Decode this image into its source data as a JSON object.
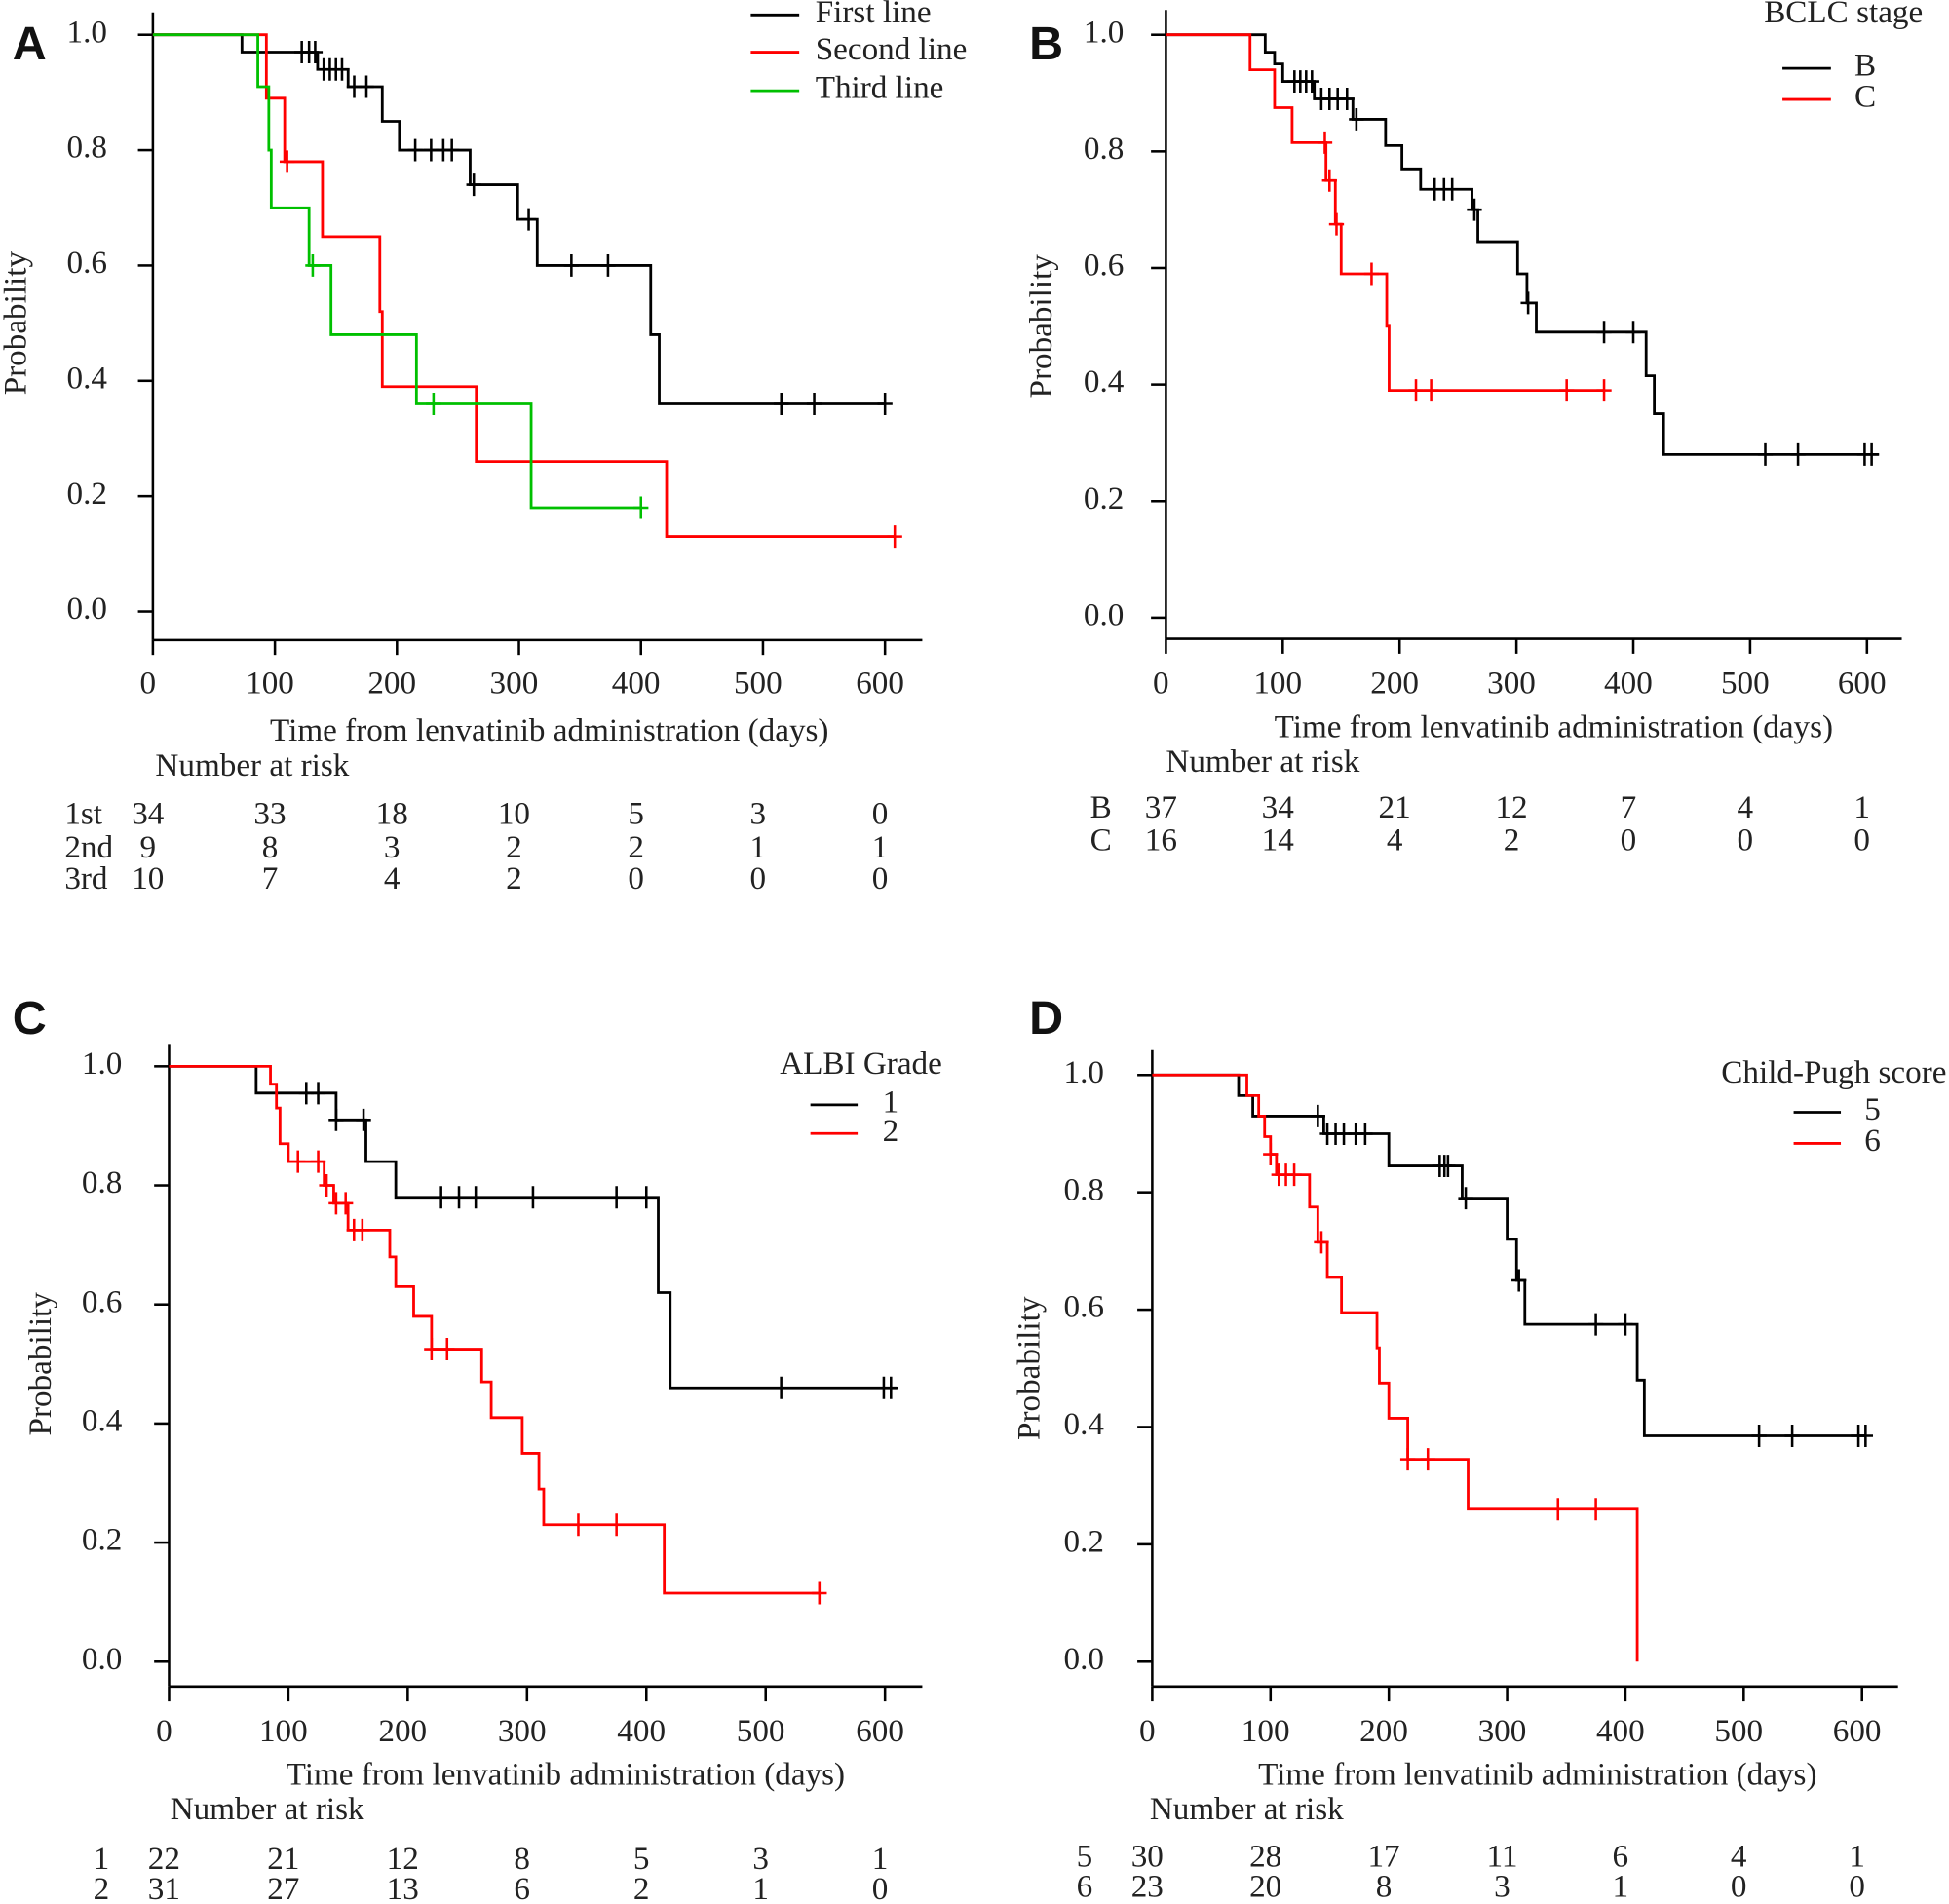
{
  "chart_data": [
    {
      "panel_label": "A",
      "type": "line",
      "subtype": "kaplan-meier",
      "xlabel": "Time from lenvatinib administration (days)",
      "ylabel": "Probability",
      "xlim": [
        0,
        600
      ],
      "ylim": [
        0,
        1
      ],
      "xticks": [
        0,
        100,
        200,
        300,
        400,
        500,
        600
      ],
      "yticks": [
        "0.0",
        "0.2",
        "0.4",
        "0.6",
        "0.8",
        "1.0"
      ],
      "grid": false,
      "legend_position": "top-right",
      "legend_title": "",
      "series": [
        {
          "name": "First line",
          "color": "#000000",
          "times": [
            0,
            73,
            135,
            160,
            188,
            202,
            260,
            299,
            315,
            408,
            415
          ],
          "survival": [
            1.0,
            0.97,
            0.94,
            0.91,
            0.85,
            0.8,
            0.74,
            0.68,
            0.6,
            0.48,
            0.36
          ],
          "end": 600,
          "censored": [
            122,
            128,
            133,
            140,
            145,
            150,
            155,
            165,
            175,
            215,
            228,
            238,
            245,
            263,
            308,
            343,
            373,
            515,
            542,
            600
          ]
        },
        {
          "name": "Second line",
          "color": "#ff0000",
          "times": [
            0,
            93,
            108,
            139,
            186,
            188,
            265,
            421
          ],
          "survival": [
            1.0,
            0.89,
            0.78,
            0.65,
            0.52,
            0.39,
            0.26,
            0.13
          ],
          "end": 608,
          "censored": [
            110,
            608
          ]
        },
        {
          "name": "Third line",
          "color": "#00c000",
          "times": [
            0,
            86,
            95,
            97,
            128,
            146,
            216,
            310
          ],
          "survival": [
            1.0,
            0.91,
            0.8,
            0.7,
            0.6,
            0.48,
            0.36,
            0.18
          ],
          "end": 400,
          "censored": [
            131,
            230,
            400
          ]
        }
      ],
      "risk_table": {
        "title": "Number at risk",
        "times": [
          0,
          100,
          200,
          300,
          400,
          500,
          600
        ],
        "rows": [
          {
            "label": "1st",
            "values": [
              "34",
              "33",
              "18",
              "10",
              "5",
              "3",
              "0"
            ]
          },
          {
            "label": "2nd",
            "values": [
              "9",
              "8",
              "3",
              "2",
              "2",
              "1",
              "1"
            ]
          },
          {
            "label": "3rd",
            "values": [
              "10",
              "7",
              "4",
              "2",
              "0",
              "0",
              "0"
            ]
          }
        ]
      }
    },
    {
      "panel_label": "B",
      "type": "line",
      "subtype": "kaplan-meier",
      "xlabel": "Time from lenvatinib administration (days)",
      "ylabel": "Probability",
      "xlim": [
        0,
        600
      ],
      "ylim": [
        0,
        1
      ],
      "xticks": [
        0,
        100,
        200,
        300,
        400,
        500,
        600
      ],
      "yticks": [
        "0.0",
        "0.2",
        "0.4",
        "0.6",
        "0.8",
        "1.0"
      ],
      "grid": false,
      "legend_position": "top-right",
      "legend_title": "BCLC stage",
      "series": [
        {
          "name": "B",
          "color": "#000000",
          "times": [
            0,
            85,
            93,
            100,
            127,
            160,
            188,
            202,
            218,
            262,
            267,
            301,
            309,
            317,
            411,
            418,
            426
          ],
          "survival": [
            1.0,
            0.97,
            0.95,
            0.92,
            0.89,
            0.855,
            0.81,
            0.77,
            0.735,
            0.7,
            0.645,
            0.59,
            0.54,
            0.49,
            0.415,
            0.35,
            0.28
          ],
          "end": 610,
          "censored": [
            110,
            115,
            120,
            125,
            133,
            140,
            147,
            155,
            163,
            230,
            238,
            245,
            264,
            310,
            375,
            400,
            513,
            541,
            598,
            604
          ]
        },
        {
          "name": "C",
          "color": "#ff0000",
          "times": [
            0,
            72,
            93,
            108,
            137,
            145,
            150,
            189,
            191
          ],
          "survival": [
            1.0,
            0.94,
            0.875,
            0.815,
            0.75,
            0.675,
            0.59,
            0.5,
            0.39
          ],
          "end": 375,
          "censored": [
            136,
            140,
            146,
            176,
            214,
            227,
            343,
            375
          ]
        }
      ],
      "risk_table": {
        "title": "Number at risk",
        "times": [
          0,
          100,
          200,
          300,
          400,
          500,
          600
        ],
        "rows": [
          {
            "label": "B",
            "values": [
              "37",
              "34",
              "21",
              "12",
              "7",
              "4",
              "1"
            ]
          },
          {
            "label": "C",
            "values": [
              "16",
              "14",
              "4",
              "2",
              "0",
              "0",
              "0"
            ]
          }
        ]
      }
    },
    {
      "panel_label": "C",
      "type": "line",
      "subtype": "kaplan-meier",
      "xlabel": "Time from lenvatinib administration (days)",
      "ylabel": "Probability",
      "xlim": [
        0,
        600
      ],
      "ylim": [
        0,
        1
      ],
      "xticks": [
        0,
        100,
        200,
        300,
        400,
        500,
        600
      ],
      "yticks": [
        "0.0",
        "0.2",
        "0.4",
        "0.6",
        "0.8",
        "1.0"
      ],
      "grid": false,
      "legend_position": "top-right",
      "legend_title": "ALBI Grade",
      "series": [
        {
          "name": "1",
          "color": "#000000",
          "times": [
            0,
            73,
            140,
            165,
            190,
            410,
            420
          ],
          "survival": [
            1.0,
            0.955,
            0.91,
            0.84,
            0.78,
            0.62,
            0.46
          ],
          "end": 610,
          "censored": [
            115,
            125,
            140,
            163,
            228,
            243,
            257,
            305,
            375,
            400,
            513,
            599,
            605
          ]
        },
        {
          "name": "2",
          "color": "#ff0000",
          "times": [
            0,
            85,
            90,
            93,
            100,
            130,
            138,
            150,
            185,
            190,
            205,
            220,
            262,
            270,
            296,
            310,
            314,
            415
          ],
          "survival": [
            1.0,
            0.97,
            0.93,
            0.87,
            0.84,
            0.8,
            0.77,
            0.725,
            0.68,
            0.63,
            0.58,
            0.525,
            0.47,
            0.41,
            0.35,
            0.29,
            0.23,
            0.115
          ],
          "end": 545,
          "censored": [
            108,
            125,
            132,
            140,
            148,
            155,
            162,
            220,
            233,
            343,
            375,
            545
          ]
        }
      ],
      "risk_table": {
        "title": "Number at risk",
        "times": [
          0,
          100,
          200,
          300,
          400,
          500,
          600
        ],
        "rows": [
          {
            "label": "1",
            "values": [
              "22",
              "21",
              "12",
              "8",
              "5",
              "3",
              "1"
            ]
          },
          {
            "label": "2",
            "values": [
              "31",
              "27",
              "13",
              "6",
              "2",
              "1",
              "0"
            ]
          }
        ]
      }
    },
    {
      "panel_label": "D",
      "type": "line",
      "subtype": "kaplan-meier",
      "xlabel": "Time from lenvatinib administration (days)",
      "ylabel": "Probability",
      "xlim": [
        0,
        600
      ],
      "ylim": [
        0,
        1
      ],
      "xticks": [
        0,
        100,
        200,
        300,
        400,
        500,
        600
      ],
      "yticks": [
        "0.0",
        "0.2",
        "0.4",
        "0.6",
        "0.8",
        "1.0"
      ],
      "grid": false,
      "legend_position": "top-right",
      "legend_title": "Child-Pugh score",
      "series": [
        {
          "name": "5",
          "color": "#000000",
          "times": [
            0,
            73,
            85,
            145,
            200,
            262,
            300,
            308,
            315,
            410,
            416
          ],
          "survival": [
            1.0,
            0.965,
            0.93,
            0.9,
            0.845,
            0.79,
            0.72,
            0.65,
            0.575,
            0.48,
            0.385
          ],
          "end": 603,
          "censored": [
            140,
            148,
            155,
            162,
            172,
            180,
            243,
            247,
            250,
            265,
            310,
            375,
            400,
            513,
            541,
            597,
            603
          ]
        },
        {
          "name": "6",
          "color": "#ff0000",
          "times": [
            0,
            80,
            90,
            95,
            100,
            105,
            133,
            140,
            148,
            160,
            190,
            192,
            200,
            216,
            267,
            410
          ],
          "survival": [
            1.0,
            0.965,
            0.93,
            0.895,
            0.865,
            0.83,
            0.775,
            0.715,
            0.655,
            0.595,
            0.535,
            0.475,
            0.415,
            0.345,
            0.26,
            0.0
          ],
          "end": 410,
          "censored": [
            100,
            107,
            113,
            120,
            143,
            216,
            233,
            343,
            375
          ]
        }
      ],
      "risk_table": {
        "title": "Number at risk",
        "times": [
          0,
          100,
          200,
          300,
          400,
          500,
          600
        ],
        "rows": [
          {
            "label": "5",
            "values": [
              "30",
              "28",
              "17",
              "11",
              "6",
              "4",
              "1"
            ]
          },
          {
            "label": "6",
            "values": [
              "23",
              "20",
              "8",
              "3",
              "1",
              "0",
              "0"
            ]
          }
        ]
      }
    }
  ]
}
